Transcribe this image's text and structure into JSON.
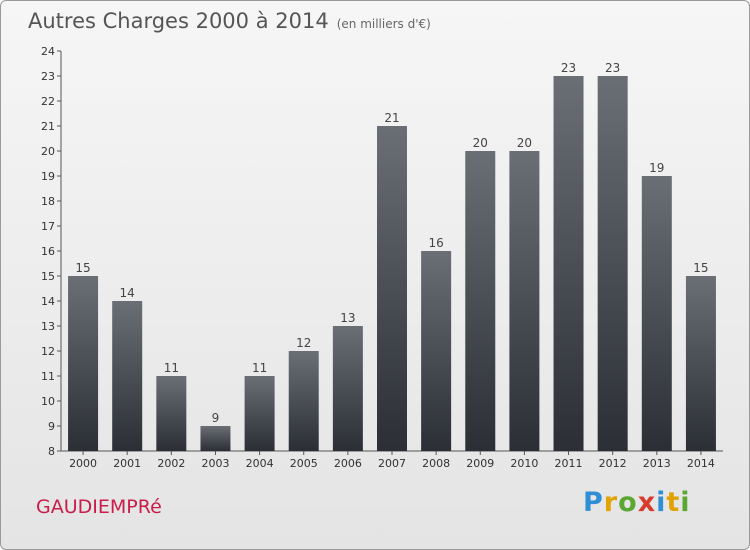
{
  "header": {
    "title": "Autres Charges 2000 à 2014",
    "subtitle": "(en milliers d'€)"
  },
  "footer": {
    "city": "GAUDIEMPRé",
    "brand": "Proxiti"
  },
  "colors": {
    "bar_top": "#6a6f75",
    "bar_bottom": "#2b2f35",
    "axis": "#555555",
    "city": "#c81e4a"
  },
  "chart_data": {
    "type": "bar",
    "categories": [
      "2000",
      "2001",
      "2002",
      "2003",
      "2004",
      "2005",
      "2006",
      "2007",
      "2008",
      "2009",
      "2010",
      "2011",
      "2012",
      "2013",
      "2014"
    ],
    "values": [
      15,
      14,
      11,
      9,
      11,
      12,
      13,
      21,
      16,
      20,
      20,
      23,
      23,
      19,
      15
    ],
    "ylim": [
      8,
      24
    ],
    "yticks": [
      8,
      9,
      10,
      11,
      12,
      13,
      14,
      15,
      16,
      17,
      18,
      19,
      20,
      21,
      22,
      23,
      24
    ],
    "grid": false,
    "legend": "none"
  }
}
